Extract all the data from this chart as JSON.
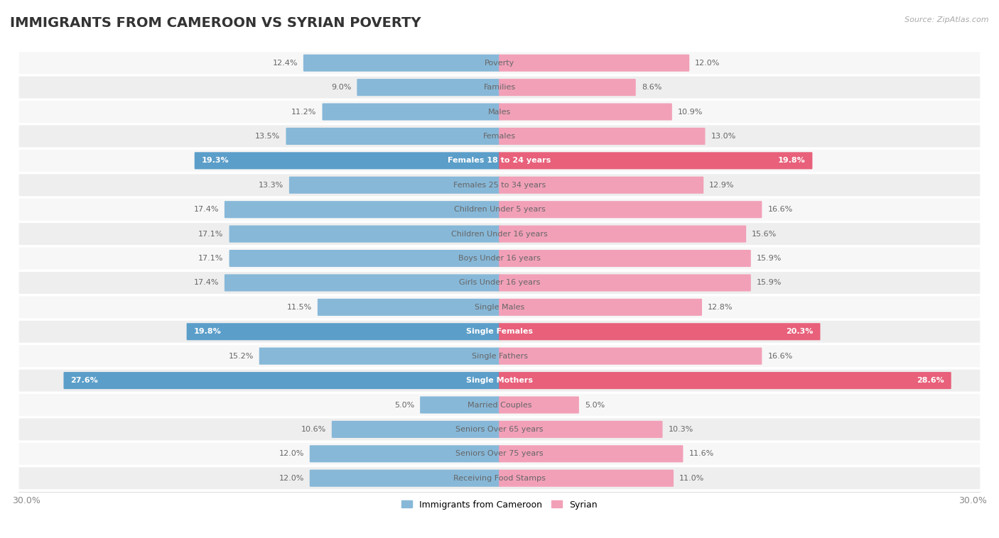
{
  "title": "IMMIGRANTS FROM CAMEROON VS SYRIAN POVERTY",
  "source": "Source: ZipAtlas.com",
  "categories": [
    "Poverty",
    "Families",
    "Males",
    "Females",
    "Females 18 to 24 years",
    "Females 25 to 34 years",
    "Children Under 5 years",
    "Children Under 16 years",
    "Boys Under 16 years",
    "Girls Under 16 years",
    "Single Males",
    "Single Females",
    "Single Fathers",
    "Single Mothers",
    "Married Couples",
    "Seniors Over 65 years",
    "Seniors Over 75 years",
    "Receiving Food Stamps"
  ],
  "cameroon_values": [
    12.4,
    9.0,
    11.2,
    13.5,
    19.3,
    13.3,
    17.4,
    17.1,
    17.1,
    17.4,
    11.5,
    19.8,
    15.2,
    27.6,
    5.0,
    10.6,
    12.0,
    12.0
  ],
  "syrian_values": [
    12.0,
    8.6,
    10.9,
    13.0,
    19.8,
    12.9,
    16.6,
    15.6,
    15.9,
    15.9,
    12.8,
    20.3,
    16.6,
    28.6,
    5.0,
    10.3,
    11.6,
    11.0
  ],
  "cameroon_color": "#87b8d8",
  "syrian_color": "#f2a0b8",
  "cameroon_highlight_color": "#5b9ec9",
  "syrian_highlight_color": "#e8607a",
  "highlight_rows": [
    4,
    11,
    13
  ],
  "axis_max": 30.0,
  "background_color": "#ffffff",
  "row_bg_light": "#f0f0f0",
  "row_bg_dark": "#e0e0e0",
  "title_fontsize": 14,
  "label_fontsize": 8,
  "value_fontsize": 8,
  "legend_fontsize": 9
}
